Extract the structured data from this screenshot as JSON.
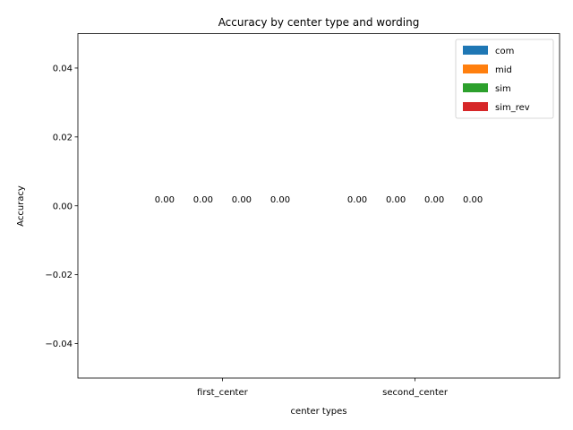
{
  "chart_data": {
    "type": "bar",
    "title": "Accuracy by center type and wording",
    "xlabel": "center types",
    "ylabel": "Accuracy",
    "categories": [
      "first_center",
      "second_center"
    ],
    "series": [
      {
        "name": "com",
        "color": "#1f77b4",
        "values": [
          0.0,
          0.0
        ],
        "labels": [
          "0.00",
          "0.00"
        ]
      },
      {
        "name": "mid",
        "color": "#ff7f0e",
        "values": [
          0.0,
          0.0
        ],
        "labels": [
          "0.00",
          "0.00"
        ]
      },
      {
        "name": "sim",
        "color": "#2ca02c",
        "values": [
          0.0,
          0.0
        ],
        "labels": [
          "0.00",
          "0.00"
        ]
      },
      {
        "name": "sim_rev",
        "color": "#d62728",
        "values": [
          0.0,
          0.0
        ],
        "labels": [
          "0.00",
          "0.00"
        ]
      }
    ],
    "ylim": [
      -0.05,
      0.05
    ],
    "yticks": [
      -0.04,
      -0.02,
      0.0,
      0.02,
      0.04
    ],
    "ytick_labels": [
      "−0.04",
      "−0.02",
      "0.00",
      "0.02",
      "0.04"
    ],
    "legend_position": "top-right",
    "grid": false
  }
}
